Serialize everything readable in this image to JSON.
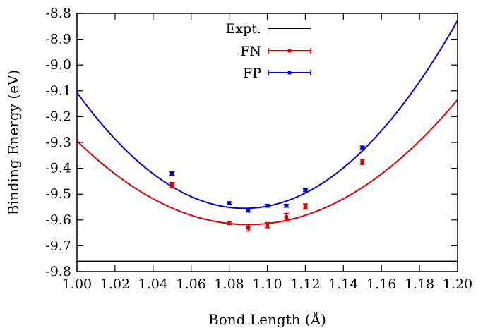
{
  "chart_data": {
    "type": "scatter",
    "xlabel": "Bond Length (Å)",
    "ylabel": "Binding Energy (eV)",
    "xlim": [
      1.0,
      1.2
    ],
    "ylim": [
      -9.8,
      -8.8
    ],
    "x_ticks": [
      "1.00",
      "1.02",
      "1.04",
      "1.06",
      "1.08",
      "1.10",
      "1.12",
      "1.14",
      "1.16",
      "1.18",
      "1.20"
    ],
    "y_ticks": [
      "-8.8",
      "-8.9",
      "-9.0",
      "-9.1",
      "-9.2",
      "-9.3",
      "-9.4",
      "-9.5",
      "-9.6",
      "-9.7",
      "-9.8"
    ],
    "grid": false,
    "legend_position": "top-center",
    "expt_value": -9.76,
    "series": [
      {
        "name": "Expt.",
        "kind": "hline",
        "color": "#000000"
      },
      {
        "name": "FN",
        "color": "#dd0000",
        "points": [
          {
            "x": 1.05,
            "y": -9.465,
            "err": 0.01
          },
          {
            "x": 1.08,
            "y": -9.612,
            "err": 0.006
          },
          {
            "x": 1.09,
            "y": -9.63,
            "err": 0.013
          },
          {
            "x": 1.1,
            "y": -9.62,
            "err": 0.01
          },
          {
            "x": 1.11,
            "y": -9.59,
            "err": 0.015
          },
          {
            "x": 1.12,
            "y": -9.548,
            "err": 0.01
          },
          {
            "x": 1.15,
            "y": -9.375,
            "err": 0.01
          }
        ],
        "fit": {
          "a": 40.0,
          "x0": 1.09,
          "y0": -9.618
        }
      },
      {
        "name": "FP",
        "color": "#0000dd",
        "points": [
          {
            "x": 1.05,
            "y": -9.42,
            "err": 0.006
          },
          {
            "x": 1.08,
            "y": -9.535,
            "err": 0.005
          },
          {
            "x": 1.09,
            "y": -9.563,
            "err": 0.006
          },
          {
            "x": 1.1,
            "y": -9.545,
            "err": 0.005
          },
          {
            "x": 1.11,
            "y": -9.545,
            "err": 0.005
          },
          {
            "x": 1.12,
            "y": -9.485,
            "err": 0.005
          },
          {
            "x": 1.15,
            "y": -9.32,
            "err": 0.006
          }
        ],
        "fit": {
          "a": 58.0,
          "x0": 1.088,
          "y0": -9.555
        }
      }
    ]
  }
}
